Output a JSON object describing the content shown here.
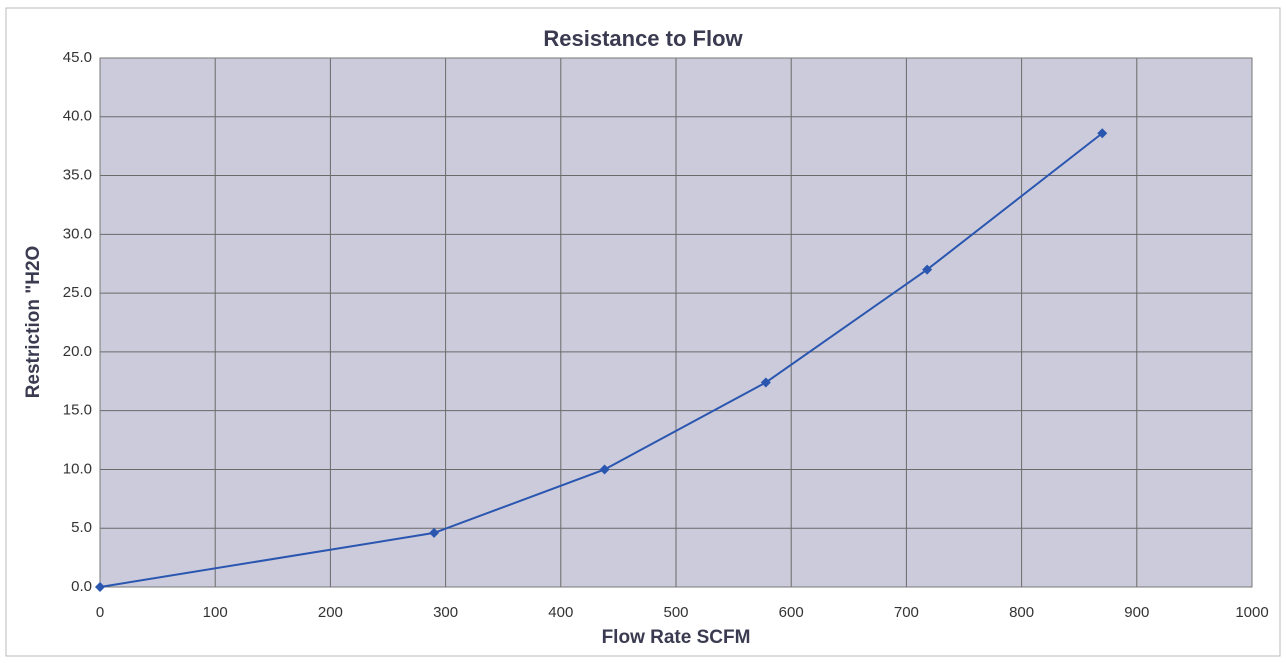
{
  "chart_data": {
    "type": "line",
    "title": "Resistance to Flow",
    "x_label": "Flow Rate SCFM",
    "y_label": "Restriction \"H2O",
    "x": [
      0,
      290,
      438,
      578,
      718,
      870
    ],
    "series": [
      {
        "color": "#2a56b0",
        "values": [
          0,
          4.6,
          10.0,
          17.4,
          27.0,
          38.6
        ]
      }
    ],
    "xlim": [
      0,
      1000
    ],
    "xticks": [
      0,
      100,
      200,
      300,
      400,
      500,
      600,
      700,
      800,
      900,
      1000
    ],
    "ylim": [
      0,
      45
    ],
    "yticks": [
      {
        "value": 0,
        "label": "0.0"
      },
      {
        "value": 5,
        "label": "5.0"
      },
      {
        "value": 10,
        "label": "10.0"
      },
      {
        "value": 15,
        "label": "15.0"
      },
      {
        "value": 20,
        "label": "20.0"
      },
      {
        "value": 25,
        "label": "25.0"
      },
      {
        "value": 30,
        "label": "30.0"
      },
      {
        "value": 35,
        "label": "35.0"
      },
      {
        "value": 40,
        "label": "40.0"
      },
      {
        "value": 45,
        "label": "45.0"
      }
    ],
    "grid": true
  }
}
